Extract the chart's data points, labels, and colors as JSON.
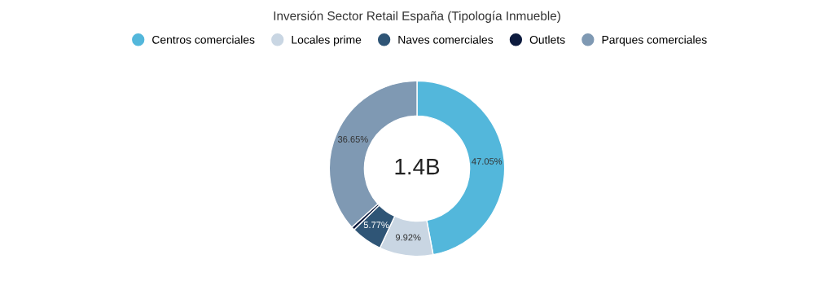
{
  "chart_data": {
    "type": "donut",
    "title": "Inversión Sector Retail España (Tipología Inmueble)",
    "categories": [
      "Centros comerciales",
      "Locales prime",
      "Naves comerciales",
      "Outlets",
      "Parques comerciales"
    ],
    "values": [
      47.05,
      9.92,
      5.77,
      0.61,
      36.65
    ],
    "colors": [
      "#53b7db",
      "#c9d6e3",
      "#2f5576",
      "#0d1b3e",
      "#7f99b3"
    ],
    "value_labels": [
      "47.05%",
      "9.92%",
      "5.77%",
      null,
      "36.65%"
    ],
    "annotations": [
      "1.4B"
    ],
    "legend": "top"
  }
}
